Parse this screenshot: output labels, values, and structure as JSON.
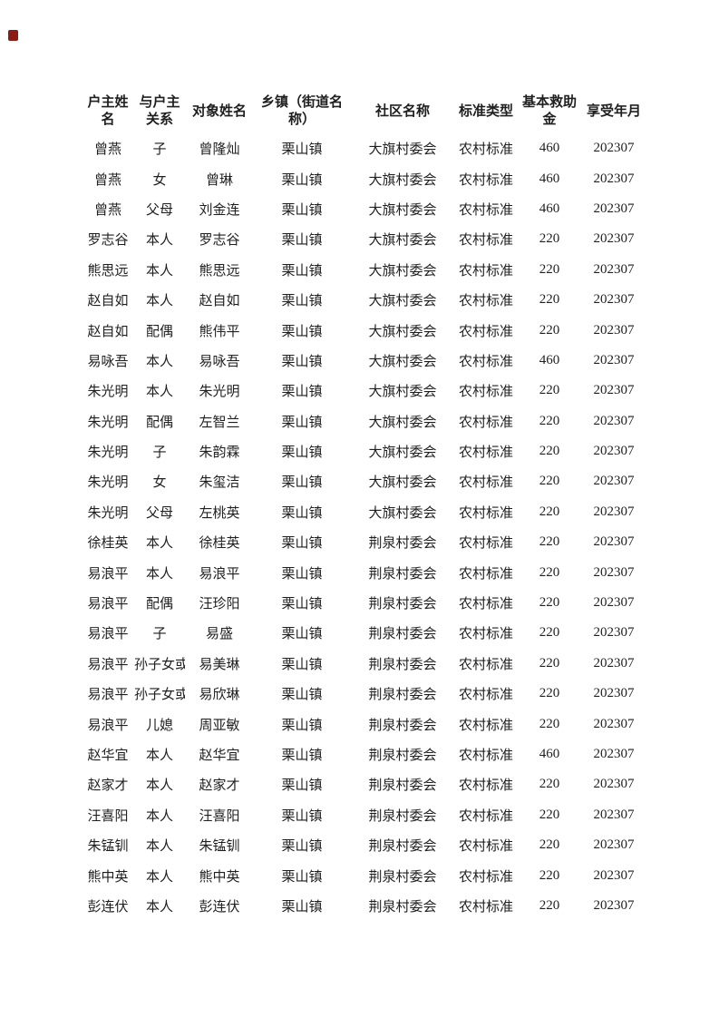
{
  "page": {
    "background_color": "#ffffff",
    "corner_marker_color": "#8b1b15"
  },
  "table": {
    "headers": [
      "户主姓名",
      "与户主关系",
      "对象姓名",
      "乡镇（街道名称）",
      "社区名称",
      "标准类型",
      "基本救助金",
      "享受年月"
    ],
    "rows": [
      [
        "曾燕",
        "子",
        "曾隆灿",
        "栗山镇",
        "大旗村委会",
        "农村标准",
        "460",
        "202307"
      ],
      [
        "曾燕",
        "女",
        "曾琳",
        "栗山镇",
        "大旗村委会",
        "农村标准",
        "460",
        "202307"
      ],
      [
        "曾燕",
        "父母",
        "刘金连",
        "栗山镇",
        "大旗村委会",
        "农村标准",
        "460",
        "202307"
      ],
      [
        "罗志谷",
        "本人",
        "罗志谷",
        "栗山镇",
        "大旗村委会",
        "农村标准",
        "220",
        "202307"
      ],
      [
        "熊思远",
        "本人",
        "熊思远",
        "栗山镇",
        "大旗村委会",
        "农村标准",
        "220",
        "202307"
      ],
      [
        "赵自如",
        "本人",
        "赵自如",
        "栗山镇",
        "大旗村委会",
        "农村标准",
        "220",
        "202307"
      ],
      [
        "赵自如",
        "配偶",
        "熊伟平",
        "栗山镇",
        "大旗村委会",
        "农村标准",
        "220",
        "202307"
      ],
      [
        "易咏吾",
        "本人",
        "易咏吾",
        "栗山镇",
        "大旗村委会",
        "农村标准",
        "460",
        "202307"
      ],
      [
        "朱光明",
        "本人",
        "朱光明",
        "栗山镇",
        "大旗村委会",
        "农村标准",
        "220",
        "202307"
      ],
      [
        "朱光明",
        "配偶",
        "左智兰",
        "栗山镇",
        "大旗村委会",
        "农村标准",
        "220",
        "202307"
      ],
      [
        "朱光明",
        "子",
        "朱韵霖",
        "栗山镇",
        "大旗村委会",
        "农村标准",
        "220",
        "202307"
      ],
      [
        "朱光明",
        "女",
        "朱玺洁",
        "栗山镇",
        "大旗村委会",
        "农村标准",
        "220",
        "202307"
      ],
      [
        "朱光明",
        "父母",
        "左桃英",
        "栗山镇",
        "大旗村委会",
        "农村标准",
        "220",
        "202307"
      ],
      [
        "徐桂英",
        "本人",
        "徐桂英",
        "栗山镇",
        "荆泉村委会",
        "农村标准",
        "220",
        "202307"
      ],
      [
        "易浪平",
        "本人",
        "易浪平",
        "栗山镇",
        "荆泉村委会",
        "农村标准",
        "220",
        "202307"
      ],
      [
        "易浪平",
        "配偶",
        "汪珍阳",
        "栗山镇",
        "荆泉村委会",
        "农村标准",
        "220",
        "202307"
      ],
      [
        "易浪平",
        "子",
        "易盛",
        "栗山镇",
        "荆泉村委会",
        "农村标准",
        "220",
        "202307"
      ],
      [
        "易浪平",
        "孙子女或外孙子女",
        "易美琳",
        "栗山镇",
        "荆泉村委会",
        "农村标准",
        "220",
        "202307"
      ],
      [
        "易浪平",
        "孙子女或外孙子女",
        "易欣琳",
        "栗山镇",
        "荆泉村委会",
        "农村标准",
        "220",
        "202307"
      ],
      [
        "易浪平",
        "儿媳",
        "周亚敏",
        "栗山镇",
        "荆泉村委会",
        "农村标准",
        "220",
        "202307"
      ],
      [
        "赵华宜",
        "本人",
        "赵华宜",
        "栗山镇",
        "荆泉村委会",
        "农村标准",
        "460",
        "202307"
      ],
      [
        "赵家才",
        "本人",
        "赵家才",
        "栗山镇",
        "荆泉村委会",
        "农村标准",
        "220",
        "202307"
      ],
      [
        "汪喜阳",
        "本人",
        "汪喜阳",
        "栗山镇",
        "荆泉村委会",
        "农村标准",
        "220",
        "202307"
      ],
      [
        "朱锰钏",
        "本人",
        "朱锰钏",
        "栗山镇",
        "荆泉村委会",
        "农村标准",
        "220",
        "202307"
      ],
      [
        "熊中英",
        "本人",
        "熊中英",
        "栗山镇",
        "荆泉村委会",
        "农村标准",
        "220",
        "202307"
      ],
      [
        "彭连伏",
        "本人",
        "彭连伏",
        "栗山镇",
        "荆泉村委会",
        "农村标准",
        "220",
        "202307"
      ]
    ]
  }
}
